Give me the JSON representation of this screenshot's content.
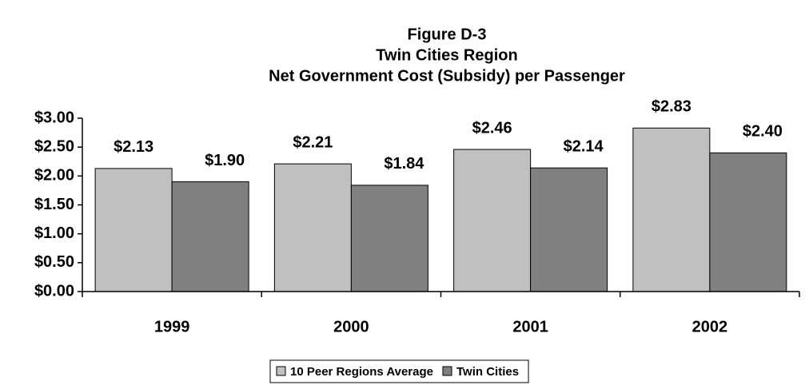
{
  "chart_data": {
    "type": "bar",
    "title": [
      "Figure D-3",
      "Twin Cities Region",
      "Net Government Cost (Subsidy) per Passenger"
    ],
    "categories": [
      "1999",
      "2000",
      "2001",
      "2002"
    ],
    "series": [
      {
        "name": "10 Peer Regions Average",
        "color": "#c0c0c0",
        "values": [
          2.13,
          2.21,
          2.46,
          2.83
        ],
        "value_labels": [
          "$2.13",
          "$2.21",
          "$2.46",
          "$2.83"
        ]
      },
      {
        "name": "Twin Cities",
        "color": "#808080",
        "values": [
          1.9,
          1.84,
          2.14,
          2.4
        ],
        "value_labels": [
          "$1.90",
          "$1.84",
          "$2.14",
          "$2.40"
        ]
      }
    ],
    "ylim": [
      0,
      3
    ],
    "yticks": [
      {
        "value": 0,
        "label": "$0.00"
      },
      {
        "value": 0.5,
        "label": "$0.50"
      },
      {
        "value": 1,
        "label": "$1.00"
      },
      {
        "value": 1.5,
        "label": "$1.50"
      },
      {
        "value": 2,
        "label": "$2.00"
      },
      {
        "value": 2.5,
        "label": "$2.50"
      },
      {
        "value": 3,
        "label": "$3.00"
      }
    ],
    "grid": false,
    "legend": "bottom"
  }
}
